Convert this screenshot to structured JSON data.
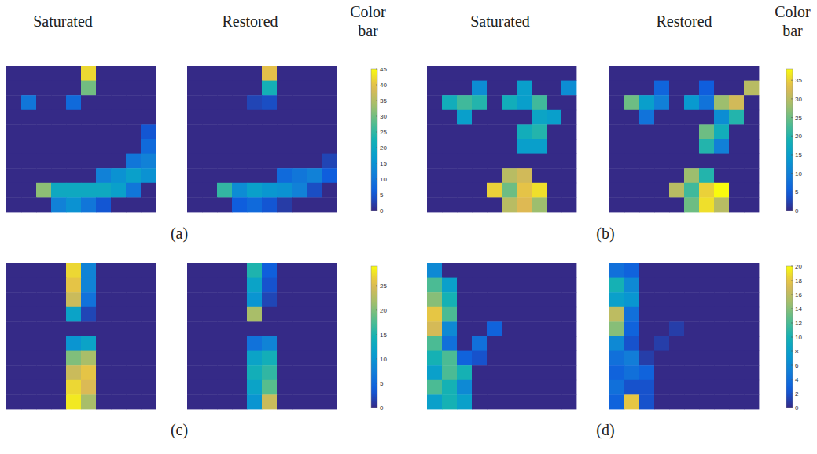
{
  "headers": [
    "Saturated",
    "Restored",
    "Color bar",
    "Saturated",
    "Restored",
    "Color bar"
  ],
  "chart_data": [
    {
      "type": "heatmap",
      "label": "(a)",
      "colorbar_range": [
        0,
        45
      ],
      "colorbar_ticks": [
        0,
        5,
        10,
        15,
        20,
        25,
        30,
        35,
        40,
        45
      ],
      "saturated_cells": [
        [
          0,
          0,
          0,
          0,
          0,
          42,
          0,
          0,
          0,
          0
        ],
        [
          0,
          0,
          0,
          0,
          0,
          30,
          0,
          0,
          0,
          0
        ],
        [
          0,
          10,
          0,
          0,
          8,
          0,
          0,
          0,
          0,
          0
        ],
        [
          0,
          0,
          0,
          0,
          0,
          0,
          0,
          0,
          0,
          0
        ],
        [
          0,
          0,
          0,
          0,
          0,
          0,
          0,
          0,
          0,
          5
        ],
        [
          0,
          0,
          0,
          0,
          0,
          0,
          0,
          0,
          0,
          8
        ],
        [
          0,
          0,
          0,
          0,
          0,
          0,
          0,
          0,
          10,
          12
        ],
        [
          0,
          0,
          0,
          0,
          0,
          0,
          12,
          15,
          18,
          15
        ],
        [
          0,
          0,
          32,
          20,
          20,
          20,
          20,
          18,
          10,
          0
        ],
        [
          0,
          0,
          0,
          12,
          15,
          10,
          5,
          0,
          0,
          0
        ]
      ],
      "restored_cells": [
        [
          0,
          0,
          0,
          0,
          0,
          40,
          0,
          0,
          0,
          0
        ],
        [
          0,
          0,
          0,
          0,
          0,
          22,
          0,
          0,
          0,
          0
        ],
        [
          0,
          0,
          0,
          0,
          3,
          4,
          0,
          0,
          0,
          0
        ],
        [
          0,
          0,
          0,
          0,
          0,
          0,
          0,
          0,
          0,
          0
        ],
        [
          0,
          0,
          0,
          0,
          0,
          0,
          0,
          0,
          0,
          0
        ],
        [
          0,
          0,
          0,
          0,
          0,
          0,
          0,
          0,
          0,
          0
        ],
        [
          0,
          0,
          0,
          0,
          0,
          0,
          0,
          0,
          0,
          3
        ],
        [
          0,
          0,
          0,
          0,
          0,
          0,
          8,
          10,
          12,
          6
        ],
        [
          0,
          0,
          25,
          14,
          18,
          16,
          15,
          12,
          4,
          0
        ],
        [
          0,
          0,
          0,
          6,
          8,
          5,
          2,
          0,
          0,
          0
        ]
      ]
    },
    {
      "type": "heatmap",
      "label": "(b)",
      "colorbar_range": [
        0,
        38
      ],
      "colorbar_ticks": [
        0,
        5,
        10,
        15,
        20,
        25,
        30,
        35
      ],
      "saturated_cells": [
        [
          0,
          0,
          0,
          0,
          0,
          0,
          0,
          0,
          0,
          0
        ],
        [
          0,
          0,
          0,
          12,
          0,
          0,
          15,
          0,
          0,
          12
        ],
        [
          0,
          18,
          22,
          20,
          0,
          18,
          15,
          22,
          0,
          0
        ],
        [
          0,
          0,
          15,
          0,
          0,
          0,
          0,
          16,
          15,
          0
        ],
        [
          0,
          0,
          0,
          0,
          0,
          0,
          18,
          20,
          0,
          0
        ],
        [
          0,
          0,
          0,
          0,
          0,
          0,
          15,
          15,
          0,
          0
        ],
        [
          0,
          0,
          0,
          0,
          0,
          0,
          0,
          0,
          0,
          0
        ],
        [
          0,
          0,
          0,
          0,
          0,
          30,
          32,
          0,
          0,
          0
        ],
        [
          0,
          0,
          0,
          0,
          35,
          25,
          34,
          36,
          0,
          0
        ],
        [
          0,
          0,
          0,
          0,
          0,
          30,
          33,
          28,
          0,
          0
        ]
      ],
      "restored_cells": [
        [
          0,
          0,
          0,
          0,
          0,
          0,
          0,
          0,
          0,
          0
        ],
        [
          0,
          0,
          0,
          6,
          0,
          0,
          5,
          0,
          0,
          30
        ],
        [
          0,
          25,
          15,
          10,
          0,
          14,
          8,
          28,
          32,
          0
        ],
        [
          0,
          0,
          8,
          0,
          0,
          0,
          0,
          12,
          20,
          0
        ],
        [
          0,
          0,
          0,
          0,
          0,
          0,
          25,
          18,
          0,
          0
        ],
        [
          0,
          0,
          0,
          0,
          0,
          0,
          20,
          10,
          0,
          0
        ],
        [
          0,
          0,
          0,
          0,
          0,
          0,
          0,
          0,
          0,
          0
        ],
        [
          0,
          0,
          0,
          0,
          0,
          28,
          20,
          0,
          0,
          0
        ],
        [
          0,
          0,
          0,
          0,
          30,
          22,
          35,
          38,
          0,
          0
        ],
        [
          0,
          0,
          0,
          0,
          0,
          25,
          36,
          30,
          0,
          0
        ]
      ]
    },
    {
      "type": "heatmap",
      "label": "(c)",
      "colorbar_range": [
        0,
        29
      ],
      "colorbar_ticks": [
        0,
        5,
        10,
        15,
        20,
        25
      ],
      "saturated_cells": [
        [
          0,
          0,
          0,
          0,
          27,
          8,
          0,
          0,
          0,
          0
        ],
        [
          0,
          0,
          0,
          0,
          26,
          8,
          0,
          0,
          0,
          0
        ],
        [
          0,
          0,
          0,
          0,
          24,
          6,
          0,
          0,
          0,
          0
        ],
        [
          0,
          0,
          0,
          0,
          12,
          2,
          0,
          0,
          0,
          0
        ],
        [
          0,
          0,
          0,
          0,
          0,
          0,
          0,
          0,
          0,
          0
        ],
        [
          0,
          0,
          0,
          0,
          10,
          12,
          0,
          0,
          0,
          0
        ],
        [
          0,
          0,
          0,
          0,
          20,
          22,
          0,
          0,
          0,
          0
        ],
        [
          0,
          0,
          0,
          0,
          24,
          26,
          0,
          0,
          0,
          0
        ],
        [
          0,
          0,
          0,
          0,
          27,
          25,
          0,
          0,
          0,
          0
        ],
        [
          0,
          0,
          0,
          0,
          28,
          22,
          0,
          0,
          0,
          0
        ]
      ],
      "restored_cells": [
        [
          0,
          0,
          0,
          0,
          15,
          4,
          0,
          0,
          0,
          0
        ],
        [
          0,
          0,
          0,
          0,
          12,
          3,
          0,
          0,
          0,
          0
        ],
        [
          0,
          0,
          0,
          0,
          10,
          2,
          0,
          0,
          0,
          0
        ],
        [
          0,
          0,
          0,
          0,
          22,
          0,
          0,
          0,
          0,
          0
        ],
        [
          0,
          0,
          0,
          0,
          0,
          0,
          0,
          0,
          0,
          0
        ],
        [
          0,
          0,
          0,
          0,
          6,
          8,
          0,
          0,
          0,
          0
        ],
        [
          0,
          0,
          0,
          0,
          12,
          14,
          0,
          0,
          0,
          0
        ],
        [
          0,
          0,
          0,
          0,
          14,
          16,
          0,
          0,
          0,
          0
        ],
        [
          0,
          0,
          0,
          0,
          12,
          18,
          0,
          0,
          0,
          0
        ],
        [
          0,
          0,
          0,
          0,
          10,
          24,
          0,
          0,
          0,
          0
        ]
      ]
    },
    {
      "type": "heatmap",
      "label": "(d)",
      "colorbar_range": [
        0,
        20
      ],
      "colorbar_ticks": [
        0,
        2,
        4,
        6,
        8,
        10,
        12,
        14,
        16,
        18,
        20
      ],
      "saturated_cells": [
        [
          6,
          0,
          0,
          0,
          0,
          0,
          0,
          0,
          0,
          0
        ],
        [
          12,
          8,
          0,
          0,
          0,
          0,
          0,
          0,
          0,
          0
        ],
        [
          14,
          10,
          0,
          0,
          0,
          0,
          0,
          0,
          0,
          0
        ],
        [
          18,
          12,
          0,
          0,
          0,
          0,
          0,
          0,
          0,
          0
        ],
        [
          17,
          6,
          0,
          0,
          3,
          0,
          0,
          0,
          0,
          0
        ],
        [
          12,
          4,
          0,
          4,
          0,
          0,
          0,
          0,
          0,
          0
        ],
        [
          10,
          12,
          3,
          2,
          0,
          0,
          0,
          0,
          0,
          0
        ],
        [
          8,
          12,
          10,
          0,
          0,
          0,
          0,
          0,
          0,
          0
        ],
        [
          12,
          10,
          6,
          0,
          0,
          0,
          0,
          0,
          0,
          0
        ],
        [
          8,
          10,
          8,
          0,
          0,
          0,
          0,
          0,
          0,
          0
        ]
      ],
      "restored_cells": [
        [
          4,
          3,
          0,
          0,
          0,
          0,
          0,
          0,
          0,
          0
        ],
        [
          10,
          6,
          0,
          0,
          0,
          0,
          0,
          0,
          0,
          0
        ],
        [
          8,
          7,
          0,
          0,
          0,
          0,
          0,
          0,
          0,
          0
        ],
        [
          16,
          4,
          0,
          0,
          0,
          0,
          0,
          0,
          0,
          0
        ],
        [
          14,
          3,
          0,
          0,
          1,
          0,
          0,
          0,
          0,
          0
        ],
        [
          6,
          2,
          0,
          1,
          0,
          0,
          0,
          0,
          0,
          0
        ],
        [
          4,
          5,
          1,
          0,
          0,
          0,
          0,
          0,
          0,
          0
        ],
        [
          3,
          4,
          3,
          0,
          0,
          0,
          0,
          0,
          0,
          0
        ],
        [
          4,
          2,
          2,
          0,
          0,
          0,
          0,
          0,
          0,
          0
        ],
        [
          3,
          18,
          2,
          0,
          0,
          0,
          0,
          0,
          0,
          0
        ]
      ]
    }
  ]
}
